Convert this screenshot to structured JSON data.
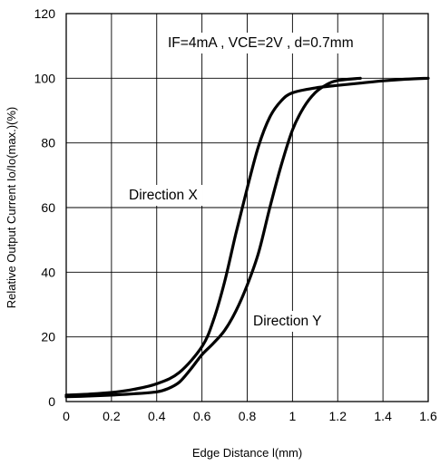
{
  "chart_data": {
    "type": "line",
    "xlabel": "Edge Distance l(mm)",
    "ylabel": "Relative Output Current Io/Io(max.)(%)",
    "xlim": [
      0,
      1.6
    ],
    "ylim": [
      0,
      120
    ],
    "xticks": [
      "0",
      "0.2",
      "0.4",
      "0.6",
      "0.8",
      "1",
      "1.2",
      "1.4",
      "1.6"
    ],
    "yticks": [
      "0",
      "20",
      "40",
      "60",
      "80",
      "100",
      "120"
    ],
    "grid": true,
    "annotations": [
      {
        "text": "IF=4mA , VCE=2V , d=0.7mm"
      },
      {
        "text": "Direction X"
      },
      {
        "text": "Direction Y"
      }
    ],
    "series": [
      {
        "points": [
          [
            0,
            2
          ],
          [
            0.1,
            2.3
          ],
          [
            0.2,
            2.8
          ],
          [
            0.3,
            3.8
          ],
          [
            0.4,
            5.5
          ],
          [
            0.5,
            9
          ],
          [
            0.6,
            17
          ],
          [
            0.65,
            25
          ],
          [
            0.7,
            37
          ],
          [
            0.75,
            52
          ],
          [
            0.8,
            66
          ],
          [
            0.85,
            79
          ],
          [
            0.9,
            88
          ],
          [
            0.95,
            93
          ],
          [
            1.0,
            95.5
          ],
          [
            1.1,
            97
          ],
          [
            1.2,
            97.8
          ],
          [
            1.3,
            98.5
          ],
          [
            1.4,
            99.2
          ],
          [
            1.5,
            99.7
          ],
          [
            1.6,
            100
          ]
        ]
      },
      {
        "points": [
          [
            0,
            1.5
          ],
          [
            0.1,
            1.7
          ],
          [
            0.2,
            2
          ],
          [
            0.3,
            2.4
          ],
          [
            0.4,
            3
          ],
          [
            0.45,
            4
          ],
          [
            0.5,
            6
          ],
          [
            0.55,
            10
          ],
          [
            0.6,
            14.5
          ],
          [
            0.65,
            18
          ],
          [
            0.7,
            22
          ],
          [
            0.75,
            28
          ],
          [
            0.8,
            36
          ],
          [
            0.85,
            46
          ],
          [
            0.9,
            60
          ],
          [
            0.95,
            73
          ],
          [
            1.0,
            84
          ],
          [
            1.05,
            91
          ],
          [
            1.1,
            95.5
          ],
          [
            1.15,
            98
          ],
          [
            1.2,
            99.3
          ],
          [
            1.3,
            100
          ]
        ]
      }
    ]
  }
}
